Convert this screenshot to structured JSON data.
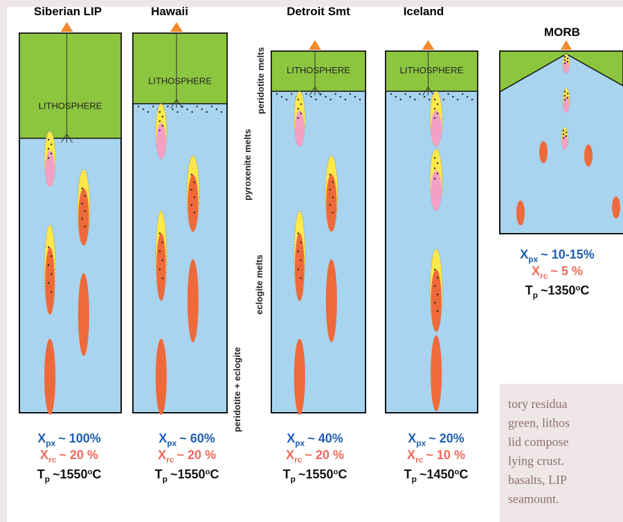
{
  "columns": [
    {
      "title": "Siberian LIP",
      "lithosphere": "LITHOSPHERE",
      "xpx": {
        "symbol": "X",
        "sub": "px",
        "text": "~ 100%"
      },
      "xrc": {
        "symbol": "X",
        "sub": "rc",
        "text": "~ 20 %"
      },
      "tp": {
        "symbol": "T",
        "sub": "p",
        "text": "~1550",
        "sup": "o",
        "unit": "C"
      }
    },
    {
      "title": "Hawaii",
      "lithosphere": "LITHOSPHERE",
      "xpx": {
        "symbol": "X",
        "sub": "px",
        "text": "~ 60%"
      },
      "xrc": {
        "symbol": "X",
        "sub": "rc",
        "text": "~ 20 %"
      },
      "tp": {
        "symbol": "T",
        "sub": "p",
        "text": "~1550",
        "sup": "o",
        "unit": "C"
      }
    },
    {
      "title": "Detroit Smt",
      "lithosphere": "LITHOSPHERE",
      "xpx": {
        "symbol": "X",
        "sub": "px",
        "text": "~ 40%"
      },
      "xrc": {
        "symbol": "X",
        "sub": "rc",
        "text": "~ 20 %"
      },
      "tp": {
        "symbol": "T",
        "sub": "p",
        "text": "~1550",
        "sup": "o",
        "unit": "C"
      }
    },
    {
      "title": "Iceland",
      "lithosphere": "LITHOSPHERE",
      "xpx": {
        "symbol": "X",
        "sub": "px",
        "text": "~ 20%"
      },
      "xrc": {
        "symbol": "X",
        "sub": "rc",
        "text": "~ 10 %"
      },
      "tp": {
        "symbol": "T",
        "sub": "p",
        "text": "~1450",
        "sup": "o",
        "unit": "C"
      }
    },
    {
      "title": "MORB",
      "xpx": {
        "symbol": "X",
        "sub": "px",
        "text": "~ 10-15%"
      },
      "xrc": {
        "symbol": "X",
        "sub": "rc",
        "text": "~ 5 %"
      },
      "tp": {
        "symbol": "T",
        "sub": "p",
        "text": "~1350",
        "sup": "o",
        "unit": "C"
      }
    }
  ],
  "side_labels": [
    "pyroxenite melts",
    "peridotite + eclogite",
    "peridotite melts",
    "eclogite melts"
  ],
  "caption": [
    "tory residua",
    "green, lithos",
    "lid compose",
    "lying crust.",
    "basalts, LIP",
    "seamount."
  ]
}
